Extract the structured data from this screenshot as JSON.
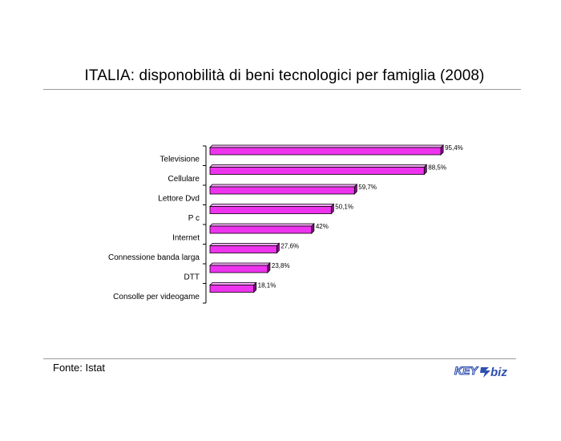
{
  "title": "ITALIA: disponobilità di beni tecnologici per famiglia (2008)",
  "source": "Fonte: Istat",
  "logo": {
    "text_key": "KEY",
    "text_biz": "biz",
    "accent": "#2f4fb0"
  },
  "colors": {
    "bar_front": "#ee33ee",
    "bar_top": "#f7a8f7",
    "bar_side": "#8a0e8a",
    "bar_stroke": "#000000"
  },
  "chart_data": {
    "type": "bar",
    "orientation": "horizontal",
    "style": "3d",
    "categories": [
      "Televisione",
      "Cellulare",
      "Lettore Dvd",
      "P c",
      "Internet",
      "Connessione banda larga",
      "DTT",
      "Consolle per videogame"
    ],
    "values": [
      95.4,
      88.5,
      59.7,
      50.1,
      42,
      27.6,
      23.8,
      18.1
    ],
    "value_labels": [
      "95,4%",
      "88,5%",
      "59,7%",
      "50,1%",
      "42%",
      "27,6%",
      "23,8%",
      "18,1%"
    ],
    "xlim": [
      0,
      100
    ],
    "grid": false,
    "legend": "none",
    "title": "ITALIA: disponobilità di beni tecnologici per famiglia (2008)",
    "xlabel": "",
    "ylabel": ""
  }
}
